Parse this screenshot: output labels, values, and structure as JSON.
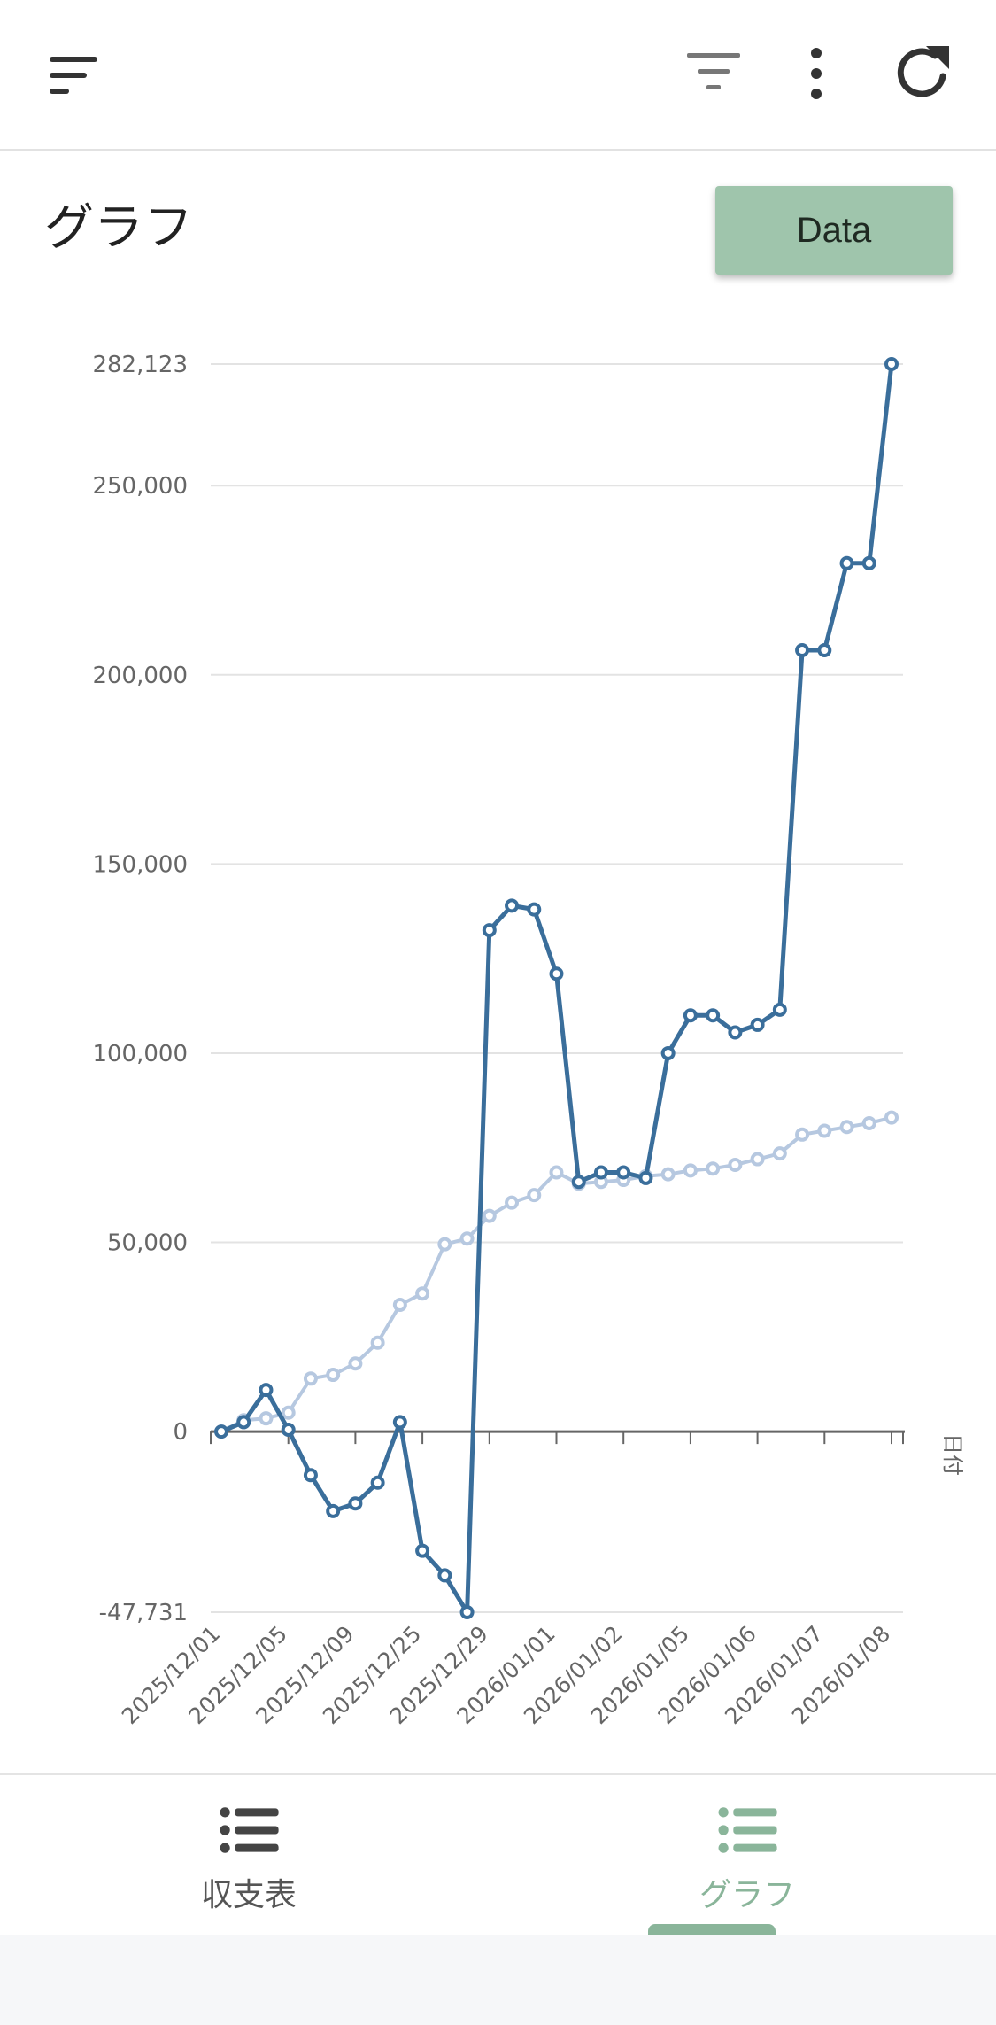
{
  "header": {
    "icons": [
      "sort-menu-icon",
      "filter-icon",
      "more-vert-icon",
      "refresh-icon"
    ]
  },
  "page": {
    "title": "グラフ",
    "data_button_label": "Data"
  },
  "colors": {
    "series_main": "#3a6e9b",
    "series_light": "#b6c8e0",
    "grid": "#e3e3e3",
    "axis": "#666666",
    "accent": "#9fc5ac",
    "nav_active": "#8ab59a"
  },
  "chart_data": {
    "type": "line",
    "title": "",
    "xlabel": "日付",
    "ylabel": "",
    "ylim": [
      -47731,
      282123
    ],
    "y_ticks": [
      {
        "value": 282123,
        "label": "282,123"
      },
      {
        "value": 250000,
        "label": "250,000"
      },
      {
        "value": 200000,
        "label": "200,000"
      },
      {
        "value": 150000,
        "label": "150,000"
      },
      {
        "value": 100000,
        "label": "100,000"
      },
      {
        "value": 50000,
        "label": "50,000"
      },
      {
        "value": 0,
        "label": "0"
      },
      {
        "value": -47731,
        "label": "-47,731"
      }
    ],
    "x_tick_labels": [
      "2025/12/01",
      "2025/12/05",
      "2025/12/09",
      "2025/12/25",
      "2025/12/29",
      "2026/01/01",
      "2026/01/02",
      "2026/01/05",
      "2026/01/06",
      "2026/01/07",
      "2026/01/08"
    ],
    "series": [
      {
        "values": [
          0,
          2500,
          11000,
          500,
          -11500,
          -21000,
          -19000,
          -13500,
          2500,
          -31500,
          -38000,
          -47731,
          132500,
          139000,
          138000,
          121000,
          66000,
          68500,
          68500,
          67000,
          100000,
          110000,
          110000,
          105500,
          107500,
          111500,
          206500,
          206500,
          229500,
          229500,
          282123
        ]
      },
      {
        "values": [
          0,
          3000,
          3500,
          5000,
          14000,
          15000,
          18000,
          23500,
          33500,
          36500,
          49500,
          51000,
          57000,
          60500,
          62500,
          68500,
          65500,
          66000,
          66500,
          67500,
          68000,
          69000,
          69500,
          70500,
          72000,
          73500,
          78500,
          79500,
          80500,
          81500,
          83000
        ]
      }
    ]
  },
  "nav": {
    "items": [
      {
        "label": "収支表"
      },
      {
        "label": "グラフ"
      }
    ]
  }
}
